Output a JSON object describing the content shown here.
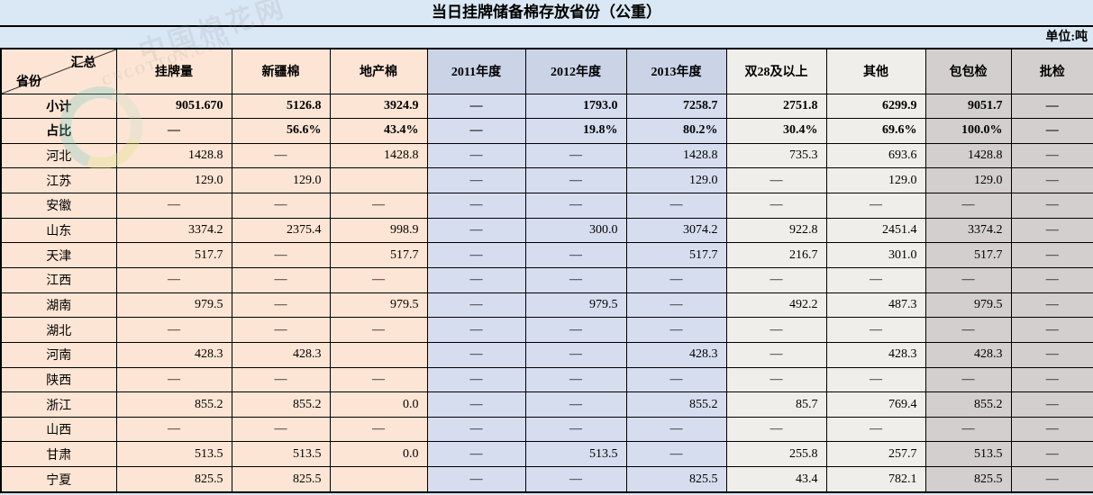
{
  "title": "当日挂牌储备棉存放省份（公重）",
  "unit_label": "单位:吨",
  "watermark": {
    "cn": "中国棉花网",
    "en": "CNCOTTON.COM"
  },
  "colors": {
    "page_background": "#d9e8f4",
    "peach_columns": "#fce5d4",
    "year_columns": "#d6ddef",
    "light_gray_columns": "#efeeea",
    "gray_columns": "#d2cfce",
    "border": "#000000"
  },
  "table": {
    "corner": {
      "top_right": "汇总",
      "bottom_left": "省份"
    },
    "columns": [
      "挂牌量",
      "新疆棉",
      "地产棉",
      "2011年度",
      "2012年度",
      "2013年度",
      "双28及以上",
      "其他",
      "包包检",
      "批检"
    ],
    "rows": [
      {
        "label": "小计",
        "values": [
          "9051.670",
          "5126.8",
          "3924.9",
          "—",
          "1793.0",
          "7258.7",
          "2751.8",
          "6299.9",
          "9051.7",
          "—"
        ]
      },
      {
        "label": "占比",
        "values": [
          "—",
          "56.6%",
          "43.4%",
          "—",
          "19.8%",
          "80.2%",
          "30.4%",
          "69.6%",
          "100.0%",
          "—"
        ]
      },
      {
        "label": "河北",
        "values": [
          "1428.8",
          "—",
          "1428.8",
          "—",
          "—",
          "1428.8",
          "735.3",
          "693.6",
          "1428.8",
          "—"
        ]
      },
      {
        "label": "江苏",
        "values": [
          "129.0",
          "129.0",
          "",
          "—",
          "—",
          "129.0",
          "—",
          "129.0",
          "129.0",
          "—"
        ]
      },
      {
        "label": "安徽",
        "values": [
          "—",
          "—",
          "—",
          "—",
          "—",
          "—",
          "—",
          "—",
          "—",
          "—"
        ]
      },
      {
        "label": "山东",
        "values": [
          "3374.2",
          "2375.4",
          "998.9",
          "—",
          "300.0",
          "3074.2",
          "922.8",
          "2451.4",
          "3374.2",
          "—"
        ]
      },
      {
        "label": "天津",
        "values": [
          "517.7",
          "—",
          "517.7",
          "—",
          "—",
          "517.7",
          "216.7",
          "301.0",
          "517.7",
          "—"
        ]
      },
      {
        "label": "江西",
        "values": [
          "—",
          "—",
          "—",
          "—",
          "—",
          "—",
          "—",
          "—",
          "—",
          "—"
        ]
      },
      {
        "label": "湖南",
        "values": [
          "979.5",
          "—",
          "979.5",
          "—",
          "979.5",
          "—",
          "492.2",
          "487.3",
          "979.5",
          "—"
        ]
      },
      {
        "label": "湖北",
        "values": [
          "—",
          "—",
          "—",
          "—",
          "—",
          "—",
          "—",
          "—",
          "—",
          "—"
        ]
      },
      {
        "label": "河南",
        "values": [
          "428.3",
          "428.3",
          "",
          "—",
          "—",
          "428.3",
          "—",
          "428.3",
          "428.3",
          "—"
        ]
      },
      {
        "label": "陕西",
        "values": [
          "—",
          "—",
          "—",
          "—",
          "—",
          "—",
          "—",
          "—",
          "—",
          "—"
        ]
      },
      {
        "label": "浙江",
        "values": [
          "855.2",
          "855.2",
          "0.0",
          "—",
          "—",
          "855.2",
          "85.7",
          "769.4",
          "855.2",
          "—"
        ]
      },
      {
        "label": "山西",
        "values": [
          "—",
          "—",
          "—",
          "—",
          "—",
          "—",
          "—",
          "—",
          "—",
          "—"
        ]
      },
      {
        "label": "甘肃",
        "values": [
          "513.5",
          "513.5",
          "0.0",
          "—",
          "513.5",
          "—",
          "255.8",
          "257.7",
          "513.5",
          "—"
        ]
      },
      {
        "label": "宁夏",
        "values": [
          "825.5",
          "825.5",
          "",
          "—",
          "—",
          "825.5",
          "43.4",
          "782.1",
          "825.5",
          "—"
        ]
      }
    ]
  }
}
